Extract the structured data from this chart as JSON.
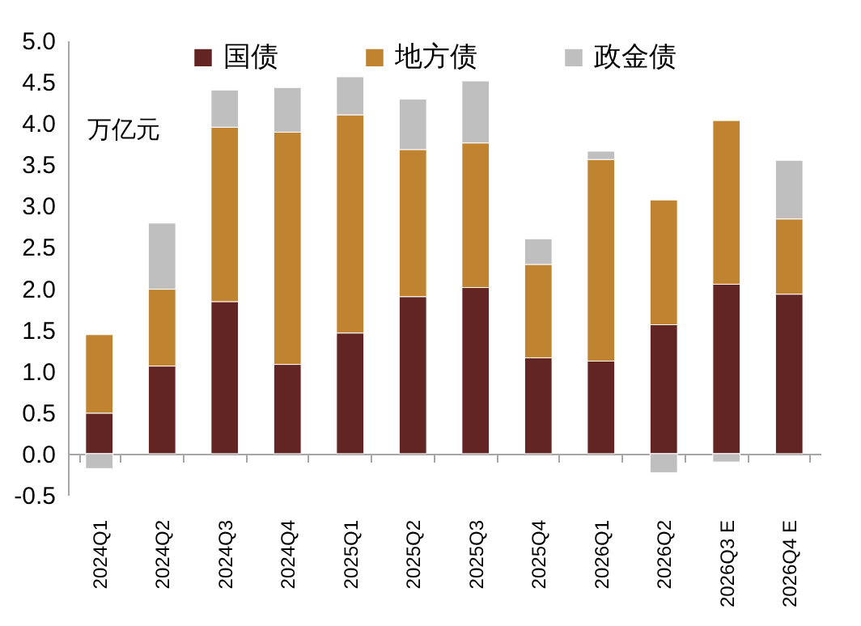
{
  "chart_data": {
    "type": "bar",
    "stacked": true,
    "categories": [
      "2024Q1",
      "2024Q2",
      "2024Q3",
      "2024Q4",
      "2025Q1",
      "2025Q2",
      "2025Q3",
      "2025Q4",
      "2026Q1",
      "2026Q2",
      "2026Q3 E",
      "2026Q4 E"
    ],
    "series": [
      {
        "name": "国债",
        "color": "#632523",
        "values": [
          0.49,
          1.06,
          1.84,
          1.08,
          1.46,
          1.9,
          2.01,
          1.16,
          1.12,
          1.56,
          2.05,
          1.93
        ]
      },
      {
        "name": "地方债",
        "color": "#c0832f",
        "values": [
          0.95,
          0.93,
          2.11,
          2.81,
          2.64,
          1.78,
          1.75,
          1.13,
          2.44,
          1.51,
          1.98,
          0.91
        ]
      },
      {
        "name": "政金债",
        "color": "#bfbfbf",
        "values": [
          -0.18,
          0.8,
          0.45,
          0.54,
          0.46,
          0.61,
          0.75,
          0.31,
          0.1,
          -0.23,
          -0.1,
          0.71
        ]
      }
    ],
    "ylim": [
      -0.5,
      5
    ],
    "yticks": [
      {
        "value": -0.5,
        "label": "-0.5"
      },
      {
        "value": 0,
        "label": "0.0"
      },
      {
        "value": 0.5,
        "label": "0.5"
      },
      {
        "value": 1,
        "label": "1.0"
      },
      {
        "value": 1.5,
        "label": "1.5"
      },
      {
        "value": 2,
        "label": "2.0"
      },
      {
        "value": 2.5,
        "label": "2.5"
      },
      {
        "value": 3,
        "label": "3.0"
      },
      {
        "value": 3.5,
        "label": "3.5"
      },
      {
        "value": 4,
        "label": "4.0"
      },
      {
        "value": 4.5,
        "label": "4.5"
      },
      {
        "value": 5,
        "label": "5.0"
      }
    ],
    "annotations": [
      "万亿元"
    ],
    "legend": "top"
  }
}
